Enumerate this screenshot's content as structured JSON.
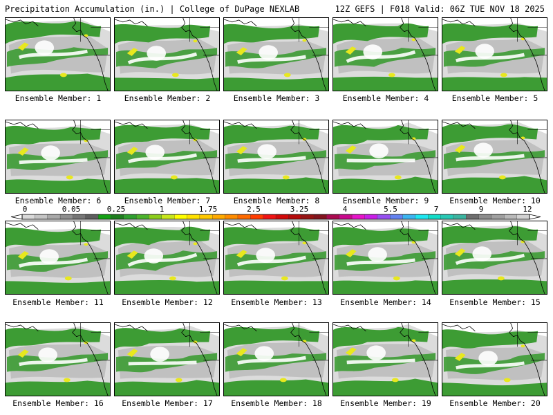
{
  "header": {
    "left": "Precipitation Accumulation (in.) | College of DuPage NEXLAB",
    "right": "12Z GEFS | F018 Valid: 06Z TUE NOV 18 2025"
  },
  "panels": [
    {
      "label": "Ensemble Member: 1"
    },
    {
      "label": "Ensemble Member: 2"
    },
    {
      "label": "Ensemble Member: 3"
    },
    {
      "label": "Ensemble Member: 4"
    },
    {
      "label": "Ensemble Member: 5"
    },
    {
      "label": "Ensemble Member: 6"
    },
    {
      "label": "Ensemble Member: 7"
    },
    {
      "label": "Ensemble Member: 8"
    },
    {
      "label": "Ensemble Member: 9"
    },
    {
      "label": "Ensemble Member: 10"
    },
    {
      "label": "Ensemble Member: 11"
    },
    {
      "label": "Ensemble Member: 12"
    },
    {
      "label": "Ensemble Member: 13"
    },
    {
      "label": "Ensemble Member: 14"
    },
    {
      "label": "Ensemble Member: 15"
    },
    {
      "label": "Ensemble Member: 16"
    },
    {
      "label": "Ensemble Member: 17"
    },
    {
      "label": "Ensemble Member: 18"
    },
    {
      "label": "Ensemble Member: 19"
    },
    {
      "label": "Ensemble Member: 20"
    }
  ],
  "colorbar": {
    "tick_labels": [
      "0",
      "0.05",
      "0.25",
      "1",
      "1.75",
      "2.5",
      "3.25",
      "4",
      "5.5",
      "7",
      "9",
      "12"
    ],
    "colors": [
      "#d9d9d9",
      "#c4c4c4",
      "#a8a8a8",
      "#8f8f8f",
      "#767676",
      "#5e5e5e",
      "#14a014",
      "#1e7d1e",
      "#2f9f2f",
      "#4cb32c",
      "#8ccd1c",
      "#c8e61c",
      "#ffff00",
      "#ffe100",
      "#ffc800",
      "#ffaa00",
      "#ff8c00",
      "#ff6a00",
      "#ff3c00",
      "#f01414",
      "#d20a0a",
      "#b40a0a",
      "#961414",
      "#82141e",
      "#aa0a50",
      "#c80a8c",
      "#e614c8",
      "#c81ee6",
      "#9650f0",
      "#6482f0",
      "#3cb4f0",
      "#1ee6f0",
      "#14dcc8",
      "#28c8b4",
      "#3cb4a0",
      "#6e6e6e",
      "#8c8c8c",
      "#a0a0a0",
      "#b9b9b9",
      "#d2d2d2"
    ]
  },
  "map_colors": {
    "green": "#3d9c34",
    "light_green": "#5fb83a",
    "yellow": "#e8e81e",
    "gray": "#b4b4b4",
    "light_gray": "#dcdcdc",
    "white": "#ffffff",
    "coast": "#000000"
  }
}
